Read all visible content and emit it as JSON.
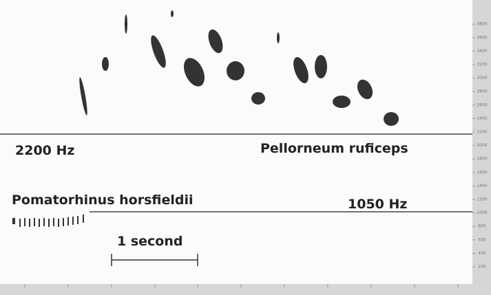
{
  "labels": {
    "upper_frequency": "2200 Hz",
    "upper_species": "Pellorneum ruficeps",
    "lower_species": "Pomatorhinus horsfieldii",
    "lower_frequency": "1050 Hz",
    "scale": "1 second"
  },
  "frequency_axis": {
    "ticks": [
      3800,
      3600,
      3400,
      3200,
      3000,
      2800,
      2600,
      2400,
      2200,
      2000,
      1800,
      1600,
      1400,
      1200,
      1000,
      800,
      600,
      400,
      200
    ]
  }
}
